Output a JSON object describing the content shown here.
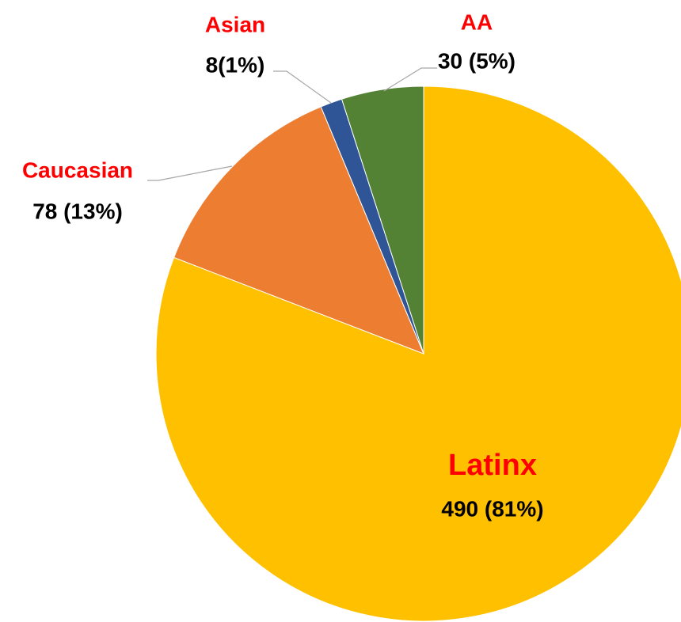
{
  "chart_data": {
    "type": "pie",
    "categories": [
      "Latinx",
      "Caucasian",
      "Asian",
      "AA"
    ],
    "values": [
      490,
      78,
      8,
      30
    ],
    "value_labels": [
      "490 (81%)",
      "78 (13%)",
      "8(1%)",
      "30 (5%)"
    ],
    "colors": [
      "#ffc000",
      "#ed7d31",
      "#2f5597",
      "#548235"
    ]
  }
}
